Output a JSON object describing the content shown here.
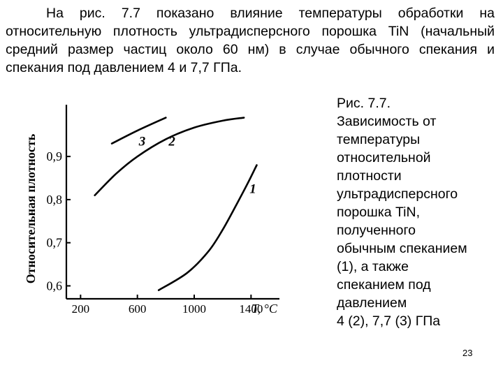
{
  "intro_text": "На рис. 7.7 показано влияние температуры обработки на относительную плотность ультрадисперсного порошка TiN (начальный средний размер частиц около 60 нм) в случае обычного спекания и спекания под давлением 4 и 7,7 ГПа.",
  "caption_lines": [
    "Рис. 7.7.",
    "Зависимость от",
    "температуры",
    "относительной",
    "плотности",
    "ультрадисперсного",
    "порошка TiN,",
    "полученного",
    "обычным спеканием",
    "(1), а также",
    "спеканием под",
    "давлением",
    "4 (2), 7,7 (3) ГПа"
  ],
  "page_number": "23",
  "chart_data": {
    "type": "line",
    "ylabel": "Относительная плотность",
    "xlabel": "T, °C",
    "x_ticks": [
      "200",
      "600",
      "1000",
      "1400"
    ],
    "x_tick_values": [
      200,
      600,
      1000,
      1400
    ],
    "y_ticks": [
      "0,6",
      "0,7",
      "0,8",
      "0,9"
    ],
    "y_tick_values": [
      0.6,
      0.7,
      0.8,
      0.9
    ],
    "xlim": [
      100,
      1600
    ],
    "ylim": [
      0.57,
      1.02
    ],
    "grid": false,
    "series": [
      {
        "name": "1",
        "points": [
          [
            750,
            0.59
          ],
          [
            950,
            0.63
          ],
          [
            1100,
            0.68
          ],
          [
            1200,
            0.73
          ],
          [
            1300,
            0.79
          ],
          [
            1380,
            0.84
          ],
          [
            1440,
            0.88
          ]
        ]
      },
      {
        "name": "2",
        "points": [
          [
            300,
            0.81
          ],
          [
            450,
            0.86
          ],
          [
            600,
            0.9
          ],
          [
            800,
            0.94
          ],
          [
            1000,
            0.967
          ],
          [
            1200,
            0.983
          ],
          [
            1350,
            0.99
          ]
        ]
      },
      {
        "name": "3",
        "points": [
          [
            420,
            0.93
          ],
          [
            600,
            0.96
          ],
          [
            800,
            0.99
          ]
        ]
      }
    ],
    "series_labels": [
      {
        "text": "1",
        "x": 1390,
        "y": 0.815
      },
      {
        "text": "2",
        "x": 820,
        "y": 0.925
      },
      {
        "text": "3",
        "x": 610,
        "y": 0.925
      }
    ]
  }
}
